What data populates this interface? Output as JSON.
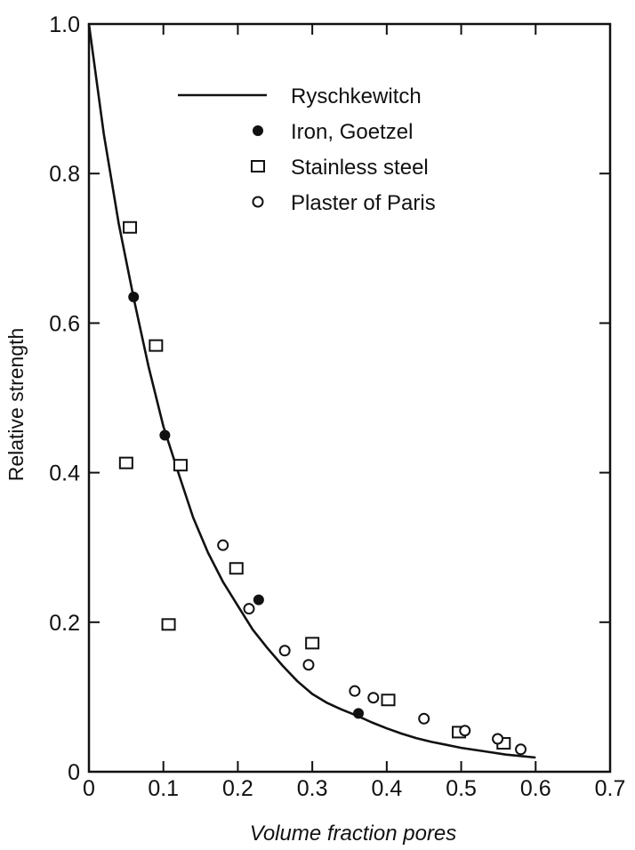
{
  "chart_data": {
    "type": "scatter",
    "title": "",
    "xlabel": "Volume fraction pores",
    "ylabel": "Relative strength",
    "xlim": [
      0,
      0.7
    ],
    "ylim": [
      0,
      1.0
    ],
    "x_ticks": [
      0,
      0.1,
      0.2,
      0.3,
      0.4,
      0.5,
      0.6,
      0.7
    ],
    "x_tick_labels": [
      "0",
      "0.1",
      "0.2",
      "0.3",
      "0.4",
      "0.5",
      "0.6",
      "0.7"
    ],
    "y_ticks": [
      0,
      0.2,
      0.4,
      0.6,
      0.8,
      1.0
    ],
    "y_tick_labels": [
      "0",
      "0.2",
      "0.4",
      "0.6",
      "0.8",
      "1.0"
    ],
    "grid": false,
    "legend_position": "top-center",
    "series": [
      {
        "name": "Ryschkewitch",
        "kind": "line",
        "marker": "none",
        "x": [
          0,
          0.02,
          0.04,
          0.06,
          0.08,
          0.1,
          0.12,
          0.14,
          0.16,
          0.18,
          0.2,
          0.22,
          0.24,
          0.26,
          0.28,
          0.3,
          0.32,
          0.34,
          0.36,
          0.38,
          0.4,
          0.42,
          0.44,
          0.46,
          0.48,
          0.5,
          0.52,
          0.54,
          0.56,
          0.58,
          0.6
        ],
        "y": [
          1.0,
          0.853,
          0.733,
          0.634,
          0.542,
          0.462,
          0.4,
          0.34,
          0.293,
          0.254,
          0.222,
          0.19,
          0.165,
          0.142,
          0.121,
          0.104,
          0.092,
          0.083,
          0.075,
          0.066,
          0.058,
          0.051,
          0.045,
          0.04,
          0.036,
          0.032,
          0.029,
          0.026,
          0.023,
          0.021,
          0.019
        ]
      },
      {
        "name": "Iron, Goetzel",
        "kind": "scatter",
        "marker": "filled-circle",
        "x": [
          0.06,
          0.102,
          0.228,
          0.362
        ],
        "y": [
          0.635,
          0.45,
          0.23,
          0.078
        ]
      },
      {
        "name": "Stainless steel",
        "kind": "scatter",
        "marker": "open-square",
        "x": [
          0.055,
          0.09,
          0.05,
          0.123,
          0.107,
          0.198,
          0.3,
          0.402,
          0.497,
          0.557
        ],
        "y": [
          0.728,
          0.57,
          0.413,
          0.41,
          0.197,
          0.272,
          0.172,
          0.096,
          0.053,
          0.038
        ]
      },
      {
        "name": "Plaster of Paris",
        "kind": "scatter",
        "marker": "open-circle",
        "x": [
          0.18,
          0.215,
          0.263,
          0.295,
          0.357,
          0.382,
          0.45,
          0.505,
          0.549,
          0.58
        ],
        "y": [
          0.303,
          0.218,
          0.162,
          0.143,
          0.108,
          0.099,
          0.071,
          0.055,
          0.044,
          0.03
        ]
      }
    ]
  }
}
